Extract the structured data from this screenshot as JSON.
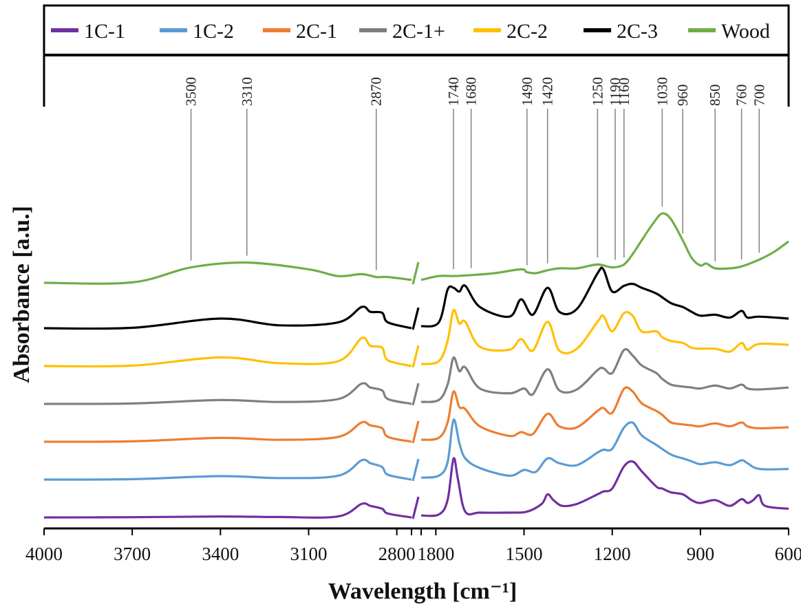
{
  "chart_data": {
    "type": "line",
    "title": "",
    "xlabel": "Wavelength [cm⁻¹]",
    "ylabel": "Absorbance [a.u.]",
    "x_ticks_left": [
      4000,
      3700,
      3400,
      3100,
      2800
    ],
    "x_ticks_right": [
      1800,
      1500,
      1200,
      900,
      600
    ],
    "x_range_left": [
      4000,
      2750
    ],
    "x_range_right": [
      1850,
      600
    ],
    "axis_break": "2750-1850",
    "legend_position": "top",
    "peak_markers": [
      "3500",
      "3310",
      "2870",
      "1740",
      "1680",
      "1490",
      "1420",
      "1250",
      "1190",
      "1160",
      "1030",
      "960",
      "850",
      "760",
      "700"
    ],
    "series": [
      {
        "name": "1C-1",
        "color": "#7030A0",
        "offset": 0,
        "left": [
          [
            4000,
            0
          ],
          [
            3700,
            0.01
          ],
          [
            3400,
            0.05
          ],
          [
            3200,
            0.02
          ],
          [
            3000,
            0.05
          ],
          [
            2920,
            0.7
          ],
          [
            2890,
            0.6
          ],
          [
            2850,
            0.45
          ],
          [
            2830,
            0.2
          ],
          [
            2750,
            0
          ]
        ],
        "right": [
          [
            1850,
            0.1
          ],
          [
            1790,
            0.15
          ],
          [
            1760,
            0.9
          ],
          [
            1740,
            3.05
          ],
          [
            1725,
            2.0
          ],
          [
            1700,
            0.3
          ],
          [
            1650,
            0.25
          ],
          [
            1550,
            0.25
          ],
          [
            1490,
            0.3
          ],
          [
            1440,
            0.7
          ],
          [
            1420,
            1.2
          ],
          [
            1400,
            0.9
          ],
          [
            1370,
            0.6
          ],
          [
            1320,
            0.7
          ],
          [
            1250,
            1.2
          ],
          [
            1230,
            1.35
          ],
          [
            1200,
            1.5
          ],
          [
            1160,
            2.65
          ],
          [
            1130,
            2.9
          ],
          [
            1100,
            2.4
          ],
          [
            1050,
            1.6
          ],
          [
            1030,
            1.5
          ],
          [
            1000,
            1.3
          ],
          [
            960,
            1.2
          ],
          [
            930,
            0.9
          ],
          [
            900,
            0.75
          ],
          [
            850,
            0.9
          ],
          [
            800,
            0.6
          ],
          [
            760,
            0.95
          ],
          [
            740,
            0.75
          ],
          [
            720,
            0.9
          ],
          [
            700,
            1.15
          ],
          [
            680,
            0.6
          ],
          [
            600,
            0.45
          ]
        ]
      },
      {
        "name": "1C-2",
        "color": "#5B9BD5",
        "offset": 1,
        "left": [
          [
            4000,
            0
          ],
          [
            3700,
            0.02
          ],
          [
            3400,
            0.18
          ],
          [
            3200,
            0.08
          ],
          [
            3000,
            0.2
          ],
          [
            2920,
            1.0
          ],
          [
            2890,
            0.85
          ],
          [
            2850,
            0.65
          ],
          [
            2830,
            0.25
          ],
          [
            2750,
            0
          ]
        ],
        "right": [
          [
            1850,
            0.1
          ],
          [
            1790,
            0.2
          ],
          [
            1760,
            0.9
          ],
          [
            1740,
            3.1
          ],
          [
            1720,
            1.9
          ],
          [
            1700,
            1.1
          ],
          [
            1650,
            0.6
          ],
          [
            1550,
            0.2
          ],
          [
            1500,
            0.5
          ],
          [
            1460,
            0.4
          ],
          [
            1420,
            1.1
          ],
          [
            1380,
            0.85
          ],
          [
            1320,
            0.75
          ],
          [
            1250,
            1.4
          ],
          [
            1230,
            1.55
          ],
          [
            1200,
            1.6
          ],
          [
            1160,
            2.7
          ],
          [
            1130,
            2.95
          ],
          [
            1100,
            2.3
          ],
          [
            1050,
            1.8
          ],
          [
            1000,
            1.3
          ],
          [
            960,
            1.1
          ],
          [
            930,
            0.95
          ],
          [
            900,
            0.8
          ],
          [
            850,
            0.9
          ],
          [
            800,
            0.75
          ],
          [
            760,
            1.0
          ],
          [
            740,
            0.85
          ],
          [
            700,
            0.55
          ],
          [
            600,
            0.55
          ]
        ]
      },
      {
        "name": "2C-1",
        "color": "#ED7D31",
        "offset": 2,
        "left": [
          [
            4000,
            0
          ],
          [
            3700,
            0.02
          ],
          [
            3400,
            0.2
          ],
          [
            3200,
            0.1
          ],
          [
            3000,
            0.25
          ],
          [
            2920,
            1.0
          ],
          [
            2890,
            0.85
          ],
          [
            2850,
            0.7
          ],
          [
            2830,
            0.25
          ],
          [
            2750,
            0
          ]
        ],
        "right": [
          [
            1850,
            0.1
          ],
          [
            1790,
            0.2
          ],
          [
            1760,
            1.0
          ],
          [
            1740,
            2.6
          ],
          [
            1720,
            1.8
          ],
          [
            1700,
            1.7
          ],
          [
            1650,
            0.8
          ],
          [
            1550,
            0.3
          ],
          [
            1510,
            0.5
          ],
          [
            1470,
            0.4
          ],
          [
            1420,
            1.45
          ],
          [
            1380,
            0.8
          ],
          [
            1320,
            0.75
          ],
          [
            1250,
            1.6
          ],
          [
            1230,
            1.75
          ],
          [
            1200,
            1.5
          ],
          [
            1160,
            2.75
          ],
          [
            1130,
            2.6
          ],
          [
            1100,
            2.0
          ],
          [
            1050,
            1.6
          ],
          [
            1030,
            1.4
          ],
          [
            1000,
            1.0
          ],
          [
            960,
            0.9
          ],
          [
            930,
            0.85
          ],
          [
            900,
            0.8
          ],
          [
            850,
            0.95
          ],
          [
            800,
            0.8
          ],
          [
            760,
            1.0
          ],
          [
            740,
            0.8
          ],
          [
            700,
            0.7
          ],
          [
            600,
            0.75
          ]
        ]
      },
      {
        "name": "2C-1+",
        "color": "#7F7F7F",
        "offset": 3,
        "left": [
          [
            4000,
            0
          ],
          [
            3700,
            0.02
          ],
          [
            3400,
            0.2
          ],
          [
            3200,
            0.1
          ],
          [
            3000,
            0.25
          ],
          [
            2920,
            1.05
          ],
          [
            2890,
            0.85
          ],
          [
            2850,
            0.7
          ],
          [
            2830,
            0.25
          ],
          [
            2750,
            0
          ]
        ],
        "right": [
          [
            1850,
            0.1
          ],
          [
            1790,
            0.2
          ],
          [
            1760,
            1.0
          ],
          [
            1740,
            2.4
          ],
          [
            1720,
            1.7
          ],
          [
            1700,
            1.9
          ],
          [
            1650,
            0.8
          ],
          [
            1550,
            0.55
          ],
          [
            1500,
            0.8
          ],
          [
            1470,
            0.5
          ],
          [
            1420,
            1.8
          ],
          [
            1380,
            0.7
          ],
          [
            1320,
            0.75
          ],
          [
            1250,
            1.75
          ],
          [
            1230,
            1.85
          ],
          [
            1200,
            1.6
          ],
          [
            1160,
            2.8
          ],
          [
            1130,
            2.5
          ],
          [
            1100,
            2.0
          ],
          [
            1050,
            1.6
          ],
          [
            1030,
            1.3
          ],
          [
            1000,
            1.0
          ],
          [
            960,
            0.9
          ],
          [
            930,
            0.85
          ],
          [
            900,
            0.8
          ],
          [
            850,
            0.95
          ],
          [
            800,
            0.8
          ],
          [
            760,
            1.0
          ],
          [
            740,
            0.8
          ],
          [
            700,
            0.75
          ],
          [
            600,
            0.85
          ]
        ]
      },
      {
        "name": "2C-2",
        "color": "#FFC000",
        "offset": 4,
        "left": [
          [
            4000,
            0
          ],
          [
            3700,
            0.02
          ],
          [
            3400,
            0.45
          ],
          [
            3200,
            0.15
          ],
          [
            3000,
            0.25
          ],
          [
            2920,
            1.45
          ],
          [
            2890,
            1.05
          ],
          [
            2850,
            0.95
          ],
          [
            2830,
            0.3
          ],
          [
            2750,
            0
          ]
        ],
        "right": [
          [
            1850,
            0.1
          ],
          [
            1790,
            0.25
          ],
          [
            1760,
            1.3
          ],
          [
            1740,
            2.9
          ],
          [
            1720,
            2.2
          ],
          [
            1700,
            2.3
          ],
          [
            1650,
            1.0
          ],
          [
            1550,
            0.85
          ],
          [
            1510,
            1.4
          ],
          [
            1470,
            0.8
          ],
          [
            1420,
            2.3
          ],
          [
            1380,
            0.8
          ],
          [
            1320,
            0.9
          ],
          [
            1250,
            2.3
          ],
          [
            1230,
            2.6
          ],
          [
            1200,
            1.8
          ],
          [
            1160,
            2.75
          ],
          [
            1130,
            2.6
          ],
          [
            1100,
            1.8
          ],
          [
            1050,
            1.8
          ],
          [
            1030,
            1.5
          ],
          [
            1000,
            1.3
          ],
          [
            960,
            1.2
          ],
          [
            930,
            0.95
          ],
          [
            900,
            0.9
          ],
          [
            850,
            0.9
          ],
          [
            800,
            0.75
          ],
          [
            760,
            1.2
          ],
          [
            740,
            0.85
          ],
          [
            700,
            1.15
          ],
          [
            600,
            1.1
          ]
        ]
      },
      {
        "name": "2C-3",
        "color": "#000000",
        "offset": 5,
        "left": [
          [
            4000,
            0
          ],
          [
            3700,
            0.02
          ],
          [
            3400,
            0.5
          ],
          [
            3200,
            0.15
          ],
          [
            3000,
            0.3
          ],
          [
            2920,
            1.1
          ],
          [
            2890,
            0.85
          ],
          [
            2850,
            0.8
          ],
          [
            2830,
            0.3
          ],
          [
            2750,
            0
          ]
        ],
        "right": [
          [
            1850,
            0.1
          ],
          [
            1790,
            0.3
          ],
          [
            1760,
            2.0
          ],
          [
            1740,
            2.1
          ],
          [
            1720,
            1.9
          ],
          [
            1700,
            2.2
          ],
          [
            1650,
            1.1
          ],
          [
            1550,
            0.6
          ],
          [
            1510,
            1.5
          ],
          [
            1470,
            0.7
          ],
          [
            1420,
            2.1
          ],
          [
            1380,
            0.85
          ],
          [
            1320,
            1.0
          ],
          [
            1250,
            2.85
          ],
          [
            1230,
            3.05
          ],
          [
            1200,
            1.9
          ],
          [
            1160,
            2.2
          ],
          [
            1130,
            2.3
          ],
          [
            1100,
            2.1
          ],
          [
            1050,
            1.8
          ],
          [
            1000,
            1.3
          ],
          [
            960,
            1.1
          ],
          [
            930,
            0.85
          ],
          [
            900,
            0.65
          ],
          [
            850,
            0.7
          ],
          [
            800,
            0.55
          ],
          [
            760,
            0.9
          ],
          [
            740,
            0.55
          ],
          [
            700,
            0.6
          ],
          [
            600,
            0.5
          ]
        ]
      },
      {
        "name": "Wood",
        "color": "#70AD47",
        "offset": 6.2,
        "left": [
          [
            4000,
            0
          ],
          [
            3700,
            0.02
          ],
          [
            3500,
            0.8
          ],
          [
            3310,
            1.05
          ],
          [
            3100,
            0.7
          ],
          [
            3000,
            0.35
          ],
          [
            2920,
            0.45
          ],
          [
            2870,
            0.3
          ],
          [
            2830,
            0.3
          ],
          [
            2750,
            0.15
          ]
        ],
        "right": [
          [
            1850,
            0.15
          ],
          [
            1790,
            0.35
          ],
          [
            1740,
            0.35
          ],
          [
            1680,
            0.4
          ],
          [
            1600,
            0.5
          ],
          [
            1510,
            0.7
          ],
          [
            1490,
            0.55
          ],
          [
            1460,
            0.5
          ],
          [
            1420,
            0.65
          ],
          [
            1380,
            0.75
          ],
          [
            1320,
            0.75
          ],
          [
            1250,
            0.95
          ],
          [
            1200,
            0.8
          ],
          [
            1160,
            0.95
          ],
          [
            1130,
            1.5
          ],
          [
            1100,
            2.2
          ],
          [
            1060,
            3.1
          ],
          [
            1030,
            3.6
          ],
          [
            1000,
            3.3
          ],
          [
            960,
            2.2
          ],
          [
            930,
            1.3
          ],
          [
            900,
            0.9
          ],
          [
            880,
            1.0
          ],
          [
            850,
            0.75
          ],
          [
            800,
            0.75
          ],
          [
            760,
            0.85
          ],
          [
            700,
            1.2
          ],
          [
            650,
            1.6
          ],
          [
            600,
            2.15
          ]
        ]
      }
    ]
  }
}
